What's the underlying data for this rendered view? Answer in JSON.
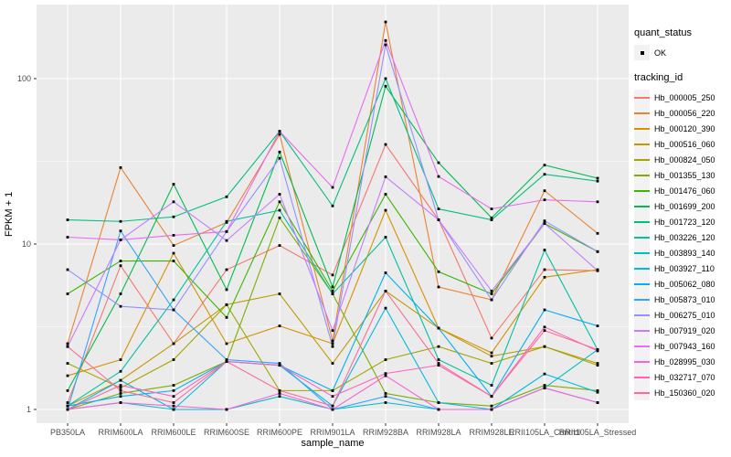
{
  "chart": {
    "y_axis": {
      "label": "FPKM + 1",
      "ticks": [
        {
          "text": "100",
          "value": 100
        },
        {
          "text": "10",
          "value": 10
        },
        {
          "text": "1",
          "value": 1
        }
      ],
      "minor_values": [
        31.623,
        3.1623
      ]
    },
    "x_axis": {
      "label": "sample_name"
    },
    "legend": {
      "quant_title": "quant_status",
      "quant_items": [
        {
          "label": "OK"
        }
      ],
      "tracking_title": "tracking_id"
    },
    "colors": {
      "panel_bg": "#EBEBEB",
      "grid": "#FFFFFF",
      "key_bg": "#F2F2F2",
      "tick_text": "#4D4D4D",
      "point": "#000000",
      "axis_tick": "#333333"
    }
  },
  "chart_data": {
    "type": "line",
    "title": "",
    "xlabel": "sample_name",
    "ylabel": "FPKM + 1",
    "y_scale": "log10",
    "ylim": [
      1,
      250
    ],
    "grid": true,
    "legend_position": "right",
    "point_marker": "black square, quant_status = OK",
    "categories": [
      "PB350LA",
      "RRIM600LA",
      "RRIM600LE",
      "RRIM600SE",
      "RRIM600PE",
      "RRIM901LA",
      "RRIM928BA",
      "RRIM928LA",
      "RRIM928LE",
      "RRII105LA_Control",
      "RRII105LA_Stressed"
    ],
    "series": [
      {
        "name": "Hb_000005_250",
        "color": "#F8766D",
        "values": [
          1.1,
          7.4,
          2.5,
          7.0,
          9.8,
          6.5,
          40,
          14,
          2.7,
          7.0,
          6.9
        ]
      },
      {
        "name": "Hb_000056_220",
        "color": "#EA8331",
        "values": [
          2.5,
          29,
          9.8,
          13.5,
          46,
          2.6,
          220,
          5.5,
          4.6,
          21,
          11.6
        ]
      },
      {
        "name": "Hb_000120_390",
        "color": "#D89000",
        "values": [
          1.6,
          2.0,
          8.8,
          2.5,
          3.2,
          2.5,
          16,
          3.1,
          2.2,
          6.3,
          7.0
        ]
      },
      {
        "name": "Hb_000516_060",
        "color": "#C09B00",
        "values": [
          1.05,
          1.5,
          2.5,
          4.3,
          5.0,
          1.9,
          5.2,
          3.1,
          2.1,
          2.4,
          1.9
        ]
      },
      {
        "name": "Hb_000824_050",
        "color": "#A3A500",
        "values": [
          1.9,
          1.35,
          2.0,
          4.3,
          1.3,
          1.3,
          2.0,
          2.4,
          1.9,
          2.4,
          1.85
        ]
      },
      {
        "name": "Hb_001355_130",
        "color": "#7CAE00",
        "values": [
          1.0,
          1.25,
          1.4,
          1.95,
          14.4,
          5.0,
          1.25,
          1.1,
          1.05,
          1.4,
          1.3
        ]
      },
      {
        "name": "Hb_001476_060",
        "color": "#39B600",
        "values": [
          5.0,
          7.9,
          7.9,
          3.6,
          18,
          5.2,
          20,
          6.8,
          5.0,
          13.3,
          9.0
        ]
      },
      {
        "name": "Hb_001699_200",
        "color": "#00BB4E",
        "values": [
          1.3,
          5.0,
          23,
          5.3,
          36,
          5.5,
          90,
          31,
          14.4,
          30,
          25
        ]
      },
      {
        "name": "Hb_001723_120",
        "color": "#00BF7D",
        "values": [
          14,
          13.7,
          14.6,
          19.3,
          48,
          17,
          100,
          16.3,
          14.0,
          26.4,
          24
        ]
      },
      {
        "name": "Hb_003226_120",
        "color": "#00C1A3",
        "values": [
          1.05,
          1.7,
          4.6,
          13.7,
          16,
          5.0,
          11,
          2.0,
          1.4,
          9.2,
          2.3
        ]
      },
      {
        "name": "Hb_003893_140",
        "color": "#00BFC4",
        "values": [
          1.0,
          1.1,
          1.0,
          1.0,
          1.2,
          1.0,
          1.1,
          1.0,
          1.0,
          1.35,
          2.3
        ]
      },
      {
        "name": "Hb_003927_110",
        "color": "#00BAE0",
        "values": [
          1.0,
          1.5,
          1.0,
          1.95,
          1.85,
          1.05,
          4.1,
          1.1,
          1.0,
          1.64,
          1.27
        ]
      },
      {
        "name": "Hb_005062_080",
        "color": "#00B0F6",
        "values": [
          1.05,
          1.2,
          1.3,
          1.95,
          1.85,
          1.3,
          6.7,
          3.1,
          1.2,
          4.0,
          3.2
        ]
      },
      {
        "name": "Hb_005873_010",
        "color": "#35A2FF",
        "values": [
          1.0,
          12,
          4.0,
          2.0,
          1.9,
          1.0,
          1.2,
          1.0,
          1.0,
          1.35,
          1.1
        ]
      },
      {
        "name": "Hb_006275_010",
        "color": "#9590FF",
        "values": [
          7.0,
          4.2,
          4.0,
          11.9,
          33,
          2.4,
          160,
          14,
          4.6,
          13.8,
          9.0
        ]
      },
      {
        "name": "Hb_007919_020",
        "color": "#C77CFF",
        "values": [
          2.4,
          10.6,
          18,
          10.5,
          20,
          3.0,
          25.5,
          14,
          5.2,
          13.3,
          6.9
        ]
      },
      {
        "name": "Hb_007943_160",
        "color": "#E76BF3",
        "values": [
          11,
          10.6,
          11.3,
          11.9,
          48,
          22,
          170,
          25.6,
          16.3,
          18.5,
          18
        ]
      },
      {
        "name": "Hb_028995_030",
        "color": "#FA62DB",
        "values": [
          1.0,
          1.1,
          1.05,
          1.0,
          1.25,
          1.0,
          1.6,
          1.0,
          1.0,
          1.35,
          1.1
        ]
      },
      {
        "name": "Hb_032717_070",
        "color": "#FF62BC",
        "values": [
          1.0,
          1.4,
          1.2,
          1.95,
          1.85,
          1.2,
          1.65,
          1.85,
          1.2,
          3.15,
          2.26
        ]
      },
      {
        "name": "Hb_150360_020",
        "color": "#FF6A98",
        "values": [
          2.4,
          1.3,
          1.1,
          1.95,
          1.3,
          1.05,
          5.2,
          1.9,
          1.2,
          3.0,
          2.3
        ]
      }
    ]
  }
}
